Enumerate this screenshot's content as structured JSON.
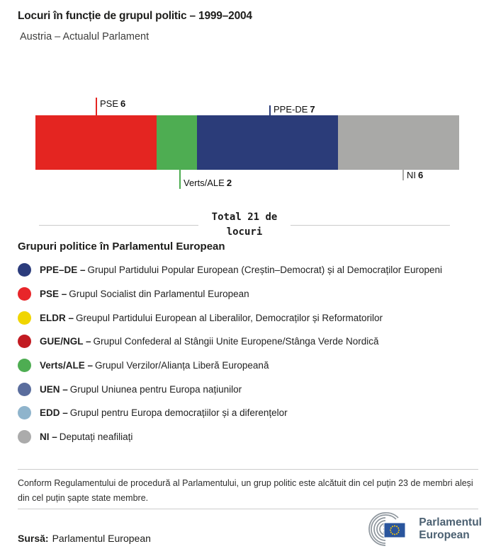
{
  "header": {
    "title": "Locuri în funcție de grupul politic – 1999–2004",
    "subtitle": "Austria – Actualul Parlament"
  },
  "chart_data": {
    "type": "bar",
    "subtype": "horizontal-stacked-seat-distribution",
    "title": "Locuri în funcție de grupul politic – 1999–2004",
    "subtitle": "Austria – Actualul Parlament",
    "total_seats": 21,
    "total_label": "Total 21 de locuri",
    "categories": [
      "PSE",
      "Verts/ALE",
      "PPE-DE",
      "NI"
    ],
    "values": [
      6,
      2,
      7,
      6
    ],
    "segments": [
      {
        "name": "PSE",
        "value": 6,
        "color": "#e42521",
        "callout": "above"
      },
      {
        "name": "Verts/ALE",
        "value": 2,
        "color": "#4ead52",
        "callout": "below"
      },
      {
        "name": "PPE-DE",
        "value": 7,
        "color": "#2b3c79",
        "callout": "above"
      },
      {
        "name": "NI",
        "value": 6,
        "color": "#a9a9a7",
        "callout": "below"
      }
    ],
    "legend_position": "below",
    "grid": false
  },
  "legend": {
    "heading": "Grupuri politice în Parlamentul European",
    "items": [
      {
        "abbr": "PPE–DE –",
        "text": "Grupul Partidului Popular European (Creștin–Democrat) și al Democraților Europeni",
        "color": "#2b3c7c"
      },
      {
        "abbr": "PSE –",
        "text": "Grupul Socialist din Parlamentul European",
        "color": "#e8262a"
      },
      {
        "abbr": "ELDR –",
        "text": "Greupul Partidului European al Liberalilor, Democraților și Reformatorilor",
        "color": "#f0d500"
      },
      {
        "abbr": "GUE/NGL –",
        "text": "Grupul Confederal al Stângii Unite Europene/Stânga Verde Nordică",
        "color": "#c21b22"
      },
      {
        "abbr": "Verts/ALE –",
        "text": "Grupul Verzilor/Alianța Liberă Europeană",
        "color": "#4ead52"
      },
      {
        "abbr": "UEN –",
        "text": "Grupul Uniunea pentru Europa națiunilor",
        "color": "#5a6d9d"
      },
      {
        "abbr": "EDD –",
        "text": "Grupul pentru Europa democrațiilor și a diferențelor",
        "color": "#8fb4cc"
      },
      {
        "abbr": "NI –",
        "text": "Deputați neafiliați",
        "color": "#ababab"
      }
    ]
  },
  "footnote": "Conform Regulamentului de procedură al Parlamentului, un grup politic este alcătuit din cel puțin 23 de membri aleși din cel puțin șapte state membre.",
  "source": {
    "label": "Sursă:",
    "value": "Parlamentul European"
  },
  "logo": {
    "line1": "Parlamentul",
    "line2": "European"
  }
}
